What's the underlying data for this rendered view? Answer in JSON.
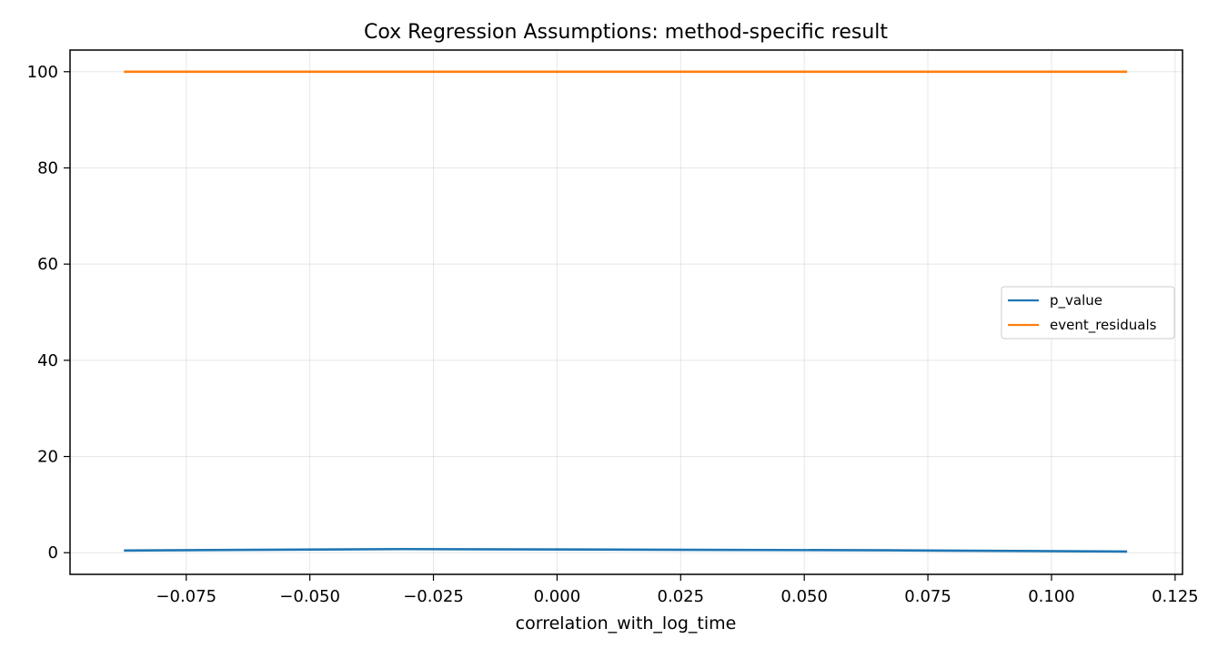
{
  "chart_data": {
    "type": "line",
    "title": "Cox Regression Assumptions: method-specific result",
    "xlabel": "correlation_with_log_time",
    "ylabel": "",
    "xlim": [
      -0.0985,
      0.1265
    ],
    "ylim": [
      -4.5,
      104.5
    ],
    "x_ticks": [
      -0.075,
      -0.05,
      -0.025,
      0.0,
      0.025,
      0.05,
      0.075,
      0.1,
      0.125
    ],
    "x_tick_labels": [
      "−0.075",
      "−0.050",
      "−0.025",
      "0.000",
      "0.025",
      "0.050",
      "0.075",
      "0.100",
      "0.125"
    ],
    "y_ticks": [
      0,
      20,
      40,
      60,
      80,
      100
    ],
    "y_tick_labels": [
      "0",
      "20",
      "40",
      "60",
      "80",
      "100"
    ],
    "grid": true,
    "legend_position": "center-right",
    "series": [
      {
        "name": "p_value",
        "color": "#1f77b4",
        "x": [
          -0.0876,
          -0.0312,
          0.0671,
          0.1153
        ],
        "y": [
          0.45,
          0.75,
          0.5,
          0.25
        ]
      },
      {
        "name": "event_residuals",
        "color": "#ff7f0e",
        "x": [
          -0.0876,
          0.1153
        ],
        "y": [
          100,
          100
        ]
      }
    ]
  }
}
